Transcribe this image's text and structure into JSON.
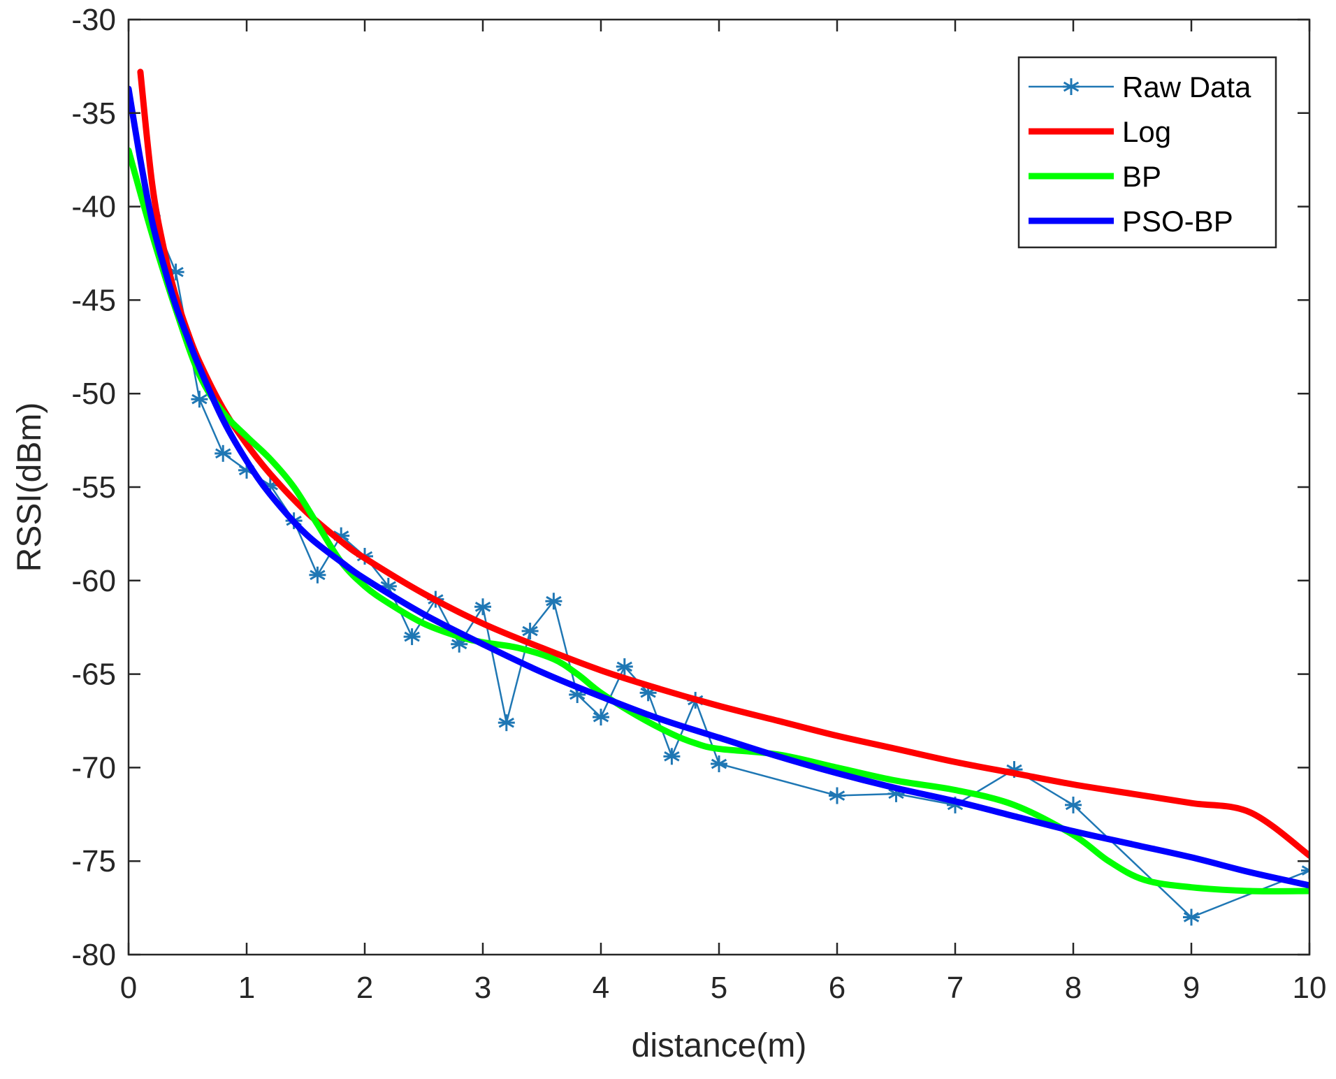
{
  "chart_data": {
    "type": "line",
    "title": "",
    "xlabel": "distance(m)",
    "ylabel": "RSSI(dBm)",
    "xlim": [
      0,
      10
    ],
    "ylim": [
      -80,
      -30
    ],
    "xticks": [
      0,
      1,
      2,
      3,
      4,
      5,
      6,
      7,
      8,
      9,
      10
    ],
    "yticks": [
      -80,
      -75,
      -70,
      -65,
      -60,
      -55,
      -50,
      -45,
      -40,
      -35,
      -30
    ],
    "xtick_labels": [
      "0",
      "1",
      "2",
      "3",
      "4",
      "5",
      "6",
      "7",
      "8",
      "9",
      "10"
    ],
    "ytick_labels": [
      "-80",
      "-75",
      "-70",
      "-65",
      "-60",
      "-55",
      "-50",
      "-45",
      "-40",
      "-35",
      "-30"
    ],
    "grid": false,
    "legend_position": "top-right",
    "series": [
      {
        "name": "Raw Data",
        "color": "#1f77b4",
        "marker": "asterisk",
        "x": [
          0.2,
          0.4,
          0.6,
          0.8,
          1.0,
          1.2,
          1.4,
          1.6,
          1.8,
          2.0,
          2.2,
          2.4,
          2.6,
          2.8,
          3.0,
          3.2,
          3.4,
          3.6,
          3.8,
          4.0,
          4.2,
          4.4,
          4.6,
          4.8,
          5.0,
          6.0,
          6.5,
          7.0,
          7.5,
          8.0,
          9.0,
          10.0
        ],
        "values": [
          -40.5,
          -43.5,
          -50.3,
          -53.2,
          -54.1,
          -54.9,
          -56.8,
          -59.7,
          -57.6,
          -58.7,
          -60.3,
          -63.0,
          -61.0,
          -63.4,
          -61.4,
          -67.6,
          -62.7,
          -61.1,
          -66.1,
          -67.3,
          -64.6,
          -66.0,
          -69.4,
          -66.4,
          -69.8,
          -71.5,
          -71.4,
          -72.0,
          -70.1,
          -72.0,
          -78.0,
          -75.5
        ]
      },
      {
        "name": "Log",
        "color": "#ff0000",
        "x": [
          0.1,
          0.2,
          0.3,
          0.4,
          0.5,
          0.6,
          0.8,
          1.0,
          1.2,
          1.5,
          1.8,
          2.0,
          2.5,
          3.0,
          3.5,
          4.0,
          4.5,
          5.0,
          5.5,
          6.0,
          6.5,
          7.0,
          7.5,
          8.0,
          8.5,
          9.0,
          9.5,
          10.0
        ],
        "values": [
          -32.8,
          -38.8,
          -42.3,
          -44.8,
          -46.7,
          -48.3,
          -50.8,
          -52.7,
          -54.3,
          -56.3,
          -57.9,
          -58.8,
          -60.7,
          -62.3,
          -63.6,
          -64.8,
          -65.8,
          -66.7,
          -67.5,
          -68.3,
          -69.0,
          -69.7,
          -70.3,
          -70.9,
          -71.4,
          -71.9,
          -72.4,
          -74.7
        ]
      },
      {
        "name": "BP",
        "color": "#00ff00",
        "x": [
          0.0,
          0.2,
          0.4,
          0.6,
          0.8,
          1.0,
          1.2,
          1.4,
          1.6,
          1.8,
          2.0,
          2.2,
          2.5,
          2.8,
          3.0,
          3.3,
          3.6,
          3.8,
          4.0,
          4.3,
          4.6,
          4.8,
          5.0,
          5.5,
          6.0,
          6.5,
          7.0,
          7.5,
          8.0,
          8.3,
          8.6,
          9.0,
          9.5,
          10.0
        ],
        "values": [
          -37.0,
          -41.5,
          -45.5,
          -49.0,
          -51.0,
          -52.3,
          -53.5,
          -55.0,
          -57.0,
          -59.0,
          -60.3,
          -61.2,
          -62.3,
          -63.0,
          -63.3,
          -63.6,
          -64.2,
          -65.0,
          -66.0,
          -67.2,
          -68.2,
          -68.7,
          -69.0,
          -69.3,
          -70.0,
          -70.7,
          -71.2,
          -72.0,
          -73.6,
          -75.0,
          -76.0,
          -76.4,
          -76.6,
          -76.6
        ]
      },
      {
        "name": "PSO-BP",
        "color": "#0000ff",
        "x": [
          0.0,
          0.1,
          0.2,
          0.3,
          0.4,
          0.5,
          0.6,
          0.8,
          1.0,
          1.2,
          1.5,
          1.8,
          2.0,
          2.5,
          3.0,
          3.5,
          4.0,
          4.5,
          5.0,
          5.5,
          6.0,
          6.5,
          7.0,
          7.5,
          8.0,
          8.5,
          9.0,
          9.5,
          10.0
        ],
        "values": [
          -33.7,
          -37.5,
          -40.8,
          -43.2,
          -45.3,
          -47.0,
          -48.6,
          -51.4,
          -53.6,
          -55.4,
          -57.5,
          -59.0,
          -59.9,
          -61.8,
          -63.4,
          -64.9,
          -66.2,
          -67.4,
          -68.4,
          -69.4,
          -70.3,
          -71.1,
          -71.8,
          -72.6,
          -73.4,
          -74.1,
          -74.8,
          -75.6,
          -76.3
        ]
      }
    ]
  }
}
